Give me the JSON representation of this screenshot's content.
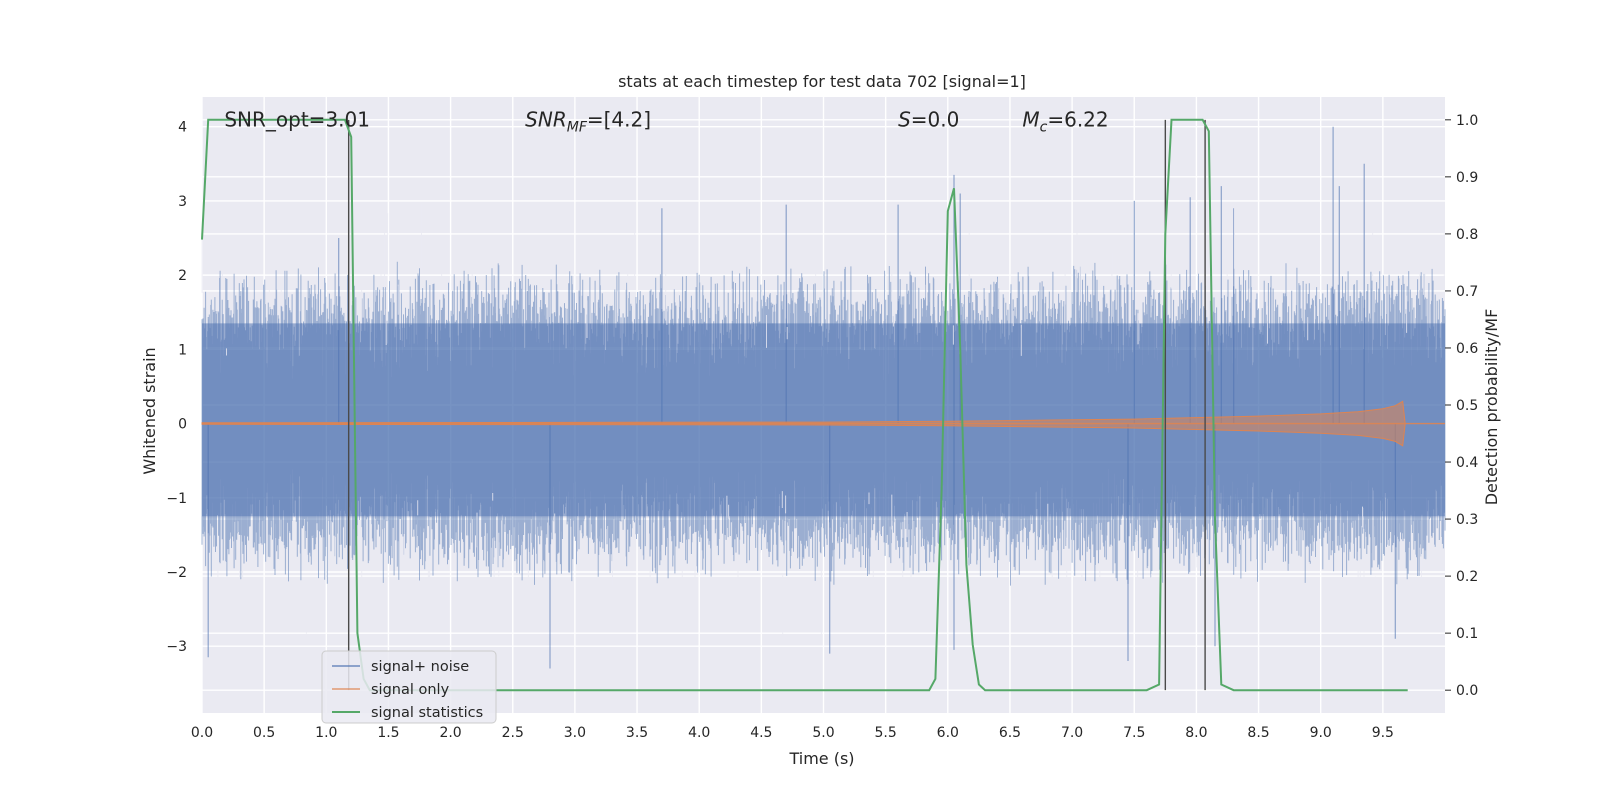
{
  "chart_data": {
    "type": "line",
    "title": "stats at each timestep for test data 702 [signal=1]",
    "xlabel": "Time (s)",
    "ylabel": "Whitened strain",
    "ylabel_right": "Detection probability/MF",
    "xlim": [
      0,
      10
    ],
    "ylim_left": [
      -3.9,
      4.4
    ],
    "ylim_right": [
      -0.04,
      1.04
    ],
    "xticks": [
      0.0,
      0.5,
      1.0,
      1.5,
      2.0,
      2.5,
      3.0,
      3.5,
      4.0,
      4.5,
      5.0,
      5.5,
      6.0,
      6.5,
      7.0,
      7.5,
      8.0,
      8.5,
      9.0,
      9.5
    ],
    "xtick_labels": [
      "0.0",
      "0.5",
      "1.0",
      "1.5",
      "2.0",
      "2.5",
      "3.0",
      "3.5",
      "4.0",
      "4.5",
      "5.0",
      "5.5",
      "6.0",
      "6.5",
      "7.0",
      "7.5",
      "8.0",
      "8.5",
      "9.0",
      "9.5"
    ],
    "yticks_left": [
      -3,
      -2,
      -1,
      0,
      1,
      2,
      3,
      4
    ],
    "ytick_labels_left": [
      "−3",
      "−2",
      "−1",
      "0",
      "1",
      "2",
      "3",
      "4"
    ],
    "yticks_right": [
      0.0,
      0.1,
      0.2,
      0.3,
      0.4,
      0.5,
      0.6,
      0.7,
      0.8,
      0.9,
      1.0
    ],
    "ytick_labels_right": [
      "0.0",
      "0.1",
      "0.2",
      "0.3",
      "0.4",
      "0.5",
      "0.6",
      "0.7",
      "0.8",
      "0.9",
      "1.0"
    ],
    "grid": true,
    "legend_position": "lower-left",
    "annotations": [
      {
        "label": "SNR_opt=3.01",
        "x": 0.18,
        "y": 4.1
      },
      {
        "label": "SNR_MF=[4.2]",
        "x": 2.6,
        "y": 4.1
      },
      {
        "label": "S=0.0",
        "x": 5.6,
        "y": 4.1
      },
      {
        "label": "M_c=6.22",
        "x": 6.6,
        "y": 4.1
      }
    ],
    "vertical_lines": [
      1.18,
      7.75,
      8.07
    ],
    "series": [
      {
        "name": "signal+ noise",
        "axis": "left",
        "color": "#4c72b0",
        "kind": "noise",
        "envelope_typical": 2.2,
        "peaks": [
          [
            1.1,
            2.5
          ],
          [
            3.7,
            2.9
          ],
          [
            4.7,
            2.95
          ],
          [
            5.6,
            2.95
          ],
          [
            6.05,
            3.35
          ],
          [
            6.1,
            3.1
          ],
          [
            7.5,
            3.0
          ],
          [
            7.95,
            3.05
          ],
          [
            8.2,
            3.2
          ],
          [
            8.3,
            2.9
          ],
          [
            9.1,
            4.0
          ],
          [
            9.15,
            3.2
          ],
          [
            9.35,
            3.5
          ],
          [
            0.05,
            -3.15
          ],
          [
            2.8,
            -3.3
          ],
          [
            5.05,
            -3.1
          ],
          [
            6.05,
            -3.05
          ],
          [
            7.45,
            -3.2
          ],
          [
            8.15,
            -3.0
          ],
          [
            9.6,
            -2.9
          ]
        ]
      },
      {
        "name": "signal only",
        "axis": "left",
        "color": "#dd8452",
        "kind": "chirp",
        "x": [
          0.0,
          5.0,
          6.0,
          7.0,
          7.5,
          8.0,
          8.5,
          9.0,
          9.3,
          9.5,
          9.6,
          9.66,
          9.68
        ],
        "amplitude": [
          0.01,
          0.02,
          0.03,
          0.05,
          0.06,
          0.08,
          0.1,
          0.13,
          0.16,
          0.2,
          0.24,
          0.3,
          0.0
        ]
      },
      {
        "name": "signal statistics",
        "axis": "right",
        "color": "#55a868",
        "x": [
          0.0,
          0.05,
          0.1,
          0.15,
          0.2,
          0.3,
          0.4,
          0.5,
          0.6,
          0.7,
          0.8,
          0.9,
          1.0,
          1.05,
          1.1,
          1.15,
          1.2,
          1.25,
          1.3,
          1.35,
          1.4,
          1.5,
          2.0,
          3.0,
          4.0,
          5.0,
          5.3,
          5.6,
          5.8,
          5.85,
          5.9,
          5.95,
          6.0,
          6.05,
          6.1,
          6.15,
          6.2,
          6.25,
          6.3,
          6.5,
          7.0,
          7.15,
          7.3,
          7.6,
          7.7,
          7.75,
          7.8,
          7.9,
          8.0,
          8.05,
          8.1,
          8.15,
          8.2,
          8.3,
          8.5,
          9.0,
          9.5,
          9.7
        ],
        "y": [
          0.79,
          1.0,
          1.0,
          1.0,
          1.0,
          1.0,
          1.0,
          1.0,
          1.0,
          1.0,
          1.0,
          1.0,
          1.0,
          1.0,
          1.0,
          1.0,
          0.97,
          0.1,
          0.02,
          0.0,
          0.0,
          0.0,
          0.0,
          0.0,
          0.0,
          0.0,
          0.0,
          0.0,
          0.0,
          0.0,
          0.02,
          0.35,
          0.84,
          0.88,
          0.6,
          0.22,
          0.08,
          0.01,
          0.0,
          0.0,
          0.0,
          0.0,
          0.0,
          0.0,
          0.01,
          0.8,
          1.0,
          1.0,
          1.0,
          1.0,
          0.98,
          0.3,
          0.01,
          0.0,
          0.0,
          0.0,
          0.0,
          0.0
        ]
      }
    ]
  }
}
